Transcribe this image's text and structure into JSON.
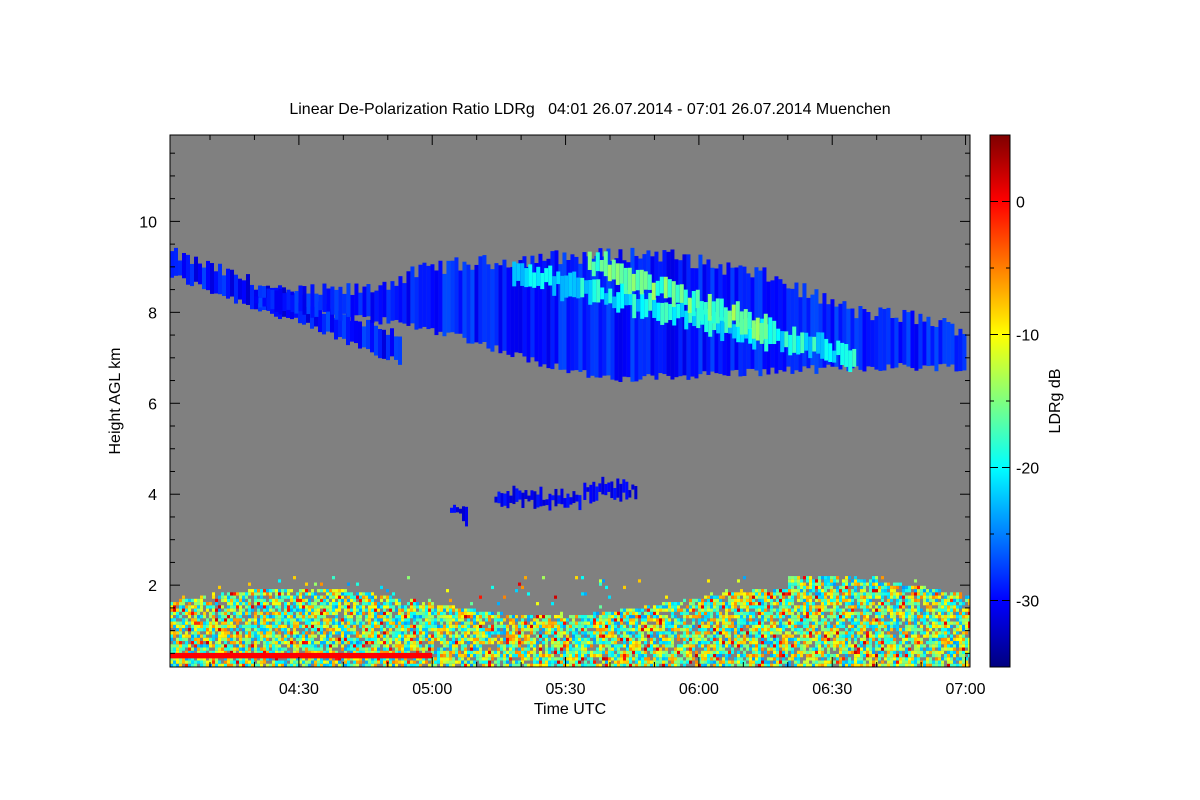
{
  "chart_data": {
    "type": "heatmap",
    "title": "Linear De-Polarization Ratio LDRg   04:01 26.07.2014 - 07:01 26.07.2014 Muenchen",
    "xlabel": "Time UTC",
    "ylabel": "Height AGL km",
    "colorbar_label": "LDRg dB",
    "x_ticks": [
      "04:30",
      "05:00",
      "05:30",
      "06:00",
      "06:30",
      "07:00"
    ],
    "x_tick_minutes": [
      270,
      300,
      330,
      360,
      390,
      420
    ],
    "xlim_minutes": [
      241,
      421
    ],
    "y_ticks": [
      "2",
      "4",
      "6",
      "8",
      "10"
    ],
    "y_tick_values": [
      2,
      4,
      6,
      8,
      10
    ],
    "ylim": [
      0.2,
      11.9
    ],
    "colorbar_ticks": [
      "0",
      "-10",
      "-20",
      "-30"
    ],
    "colorbar_tick_values": [
      0,
      -10,
      -20,
      -30
    ],
    "colorbar_range": [
      -35,
      5
    ],
    "background_color": "#808080",
    "colormap": [
      "#00007f",
      "#0000ff",
      "#007fff",
      "#00ffff",
      "#7fff7f",
      "#ffff00",
      "#ff7f00",
      "#ff0000",
      "#7f0000"
    ],
    "features": [
      {
        "kind": "cirrus-band",
        "x_start": 241,
        "x_end": 293,
        "top_start": 9.3,
        "top_end": 7.5,
        "bottom_start": 8.8,
        "bottom_end": 6.9,
        "value_range": [
          -32,
          -27
        ]
      },
      {
        "kind": "cirrus-layer",
        "x_start": 260,
        "x_end": 420,
        "top": [
          [
            260,
            8.4
          ],
          [
            285,
            8.5
          ],
          [
            300,
            9.0
          ],
          [
            325,
            9.2
          ],
          [
            350,
            9.3
          ],
          [
            375,
            8.8
          ],
          [
            395,
            8.0
          ],
          [
            408,
            7.9
          ],
          [
            420,
            7.6
          ]
        ],
        "bottom": [
          [
            260,
            8.1
          ],
          [
            290,
            7.8
          ],
          [
            305,
            7.5
          ],
          [
            320,
            7.0
          ],
          [
            340,
            6.5
          ],
          [
            355,
            6.6
          ],
          [
            375,
            6.7
          ],
          [
            400,
            6.8
          ],
          [
            420,
            6.8
          ]
        ],
        "bright_streaks": [
          {
            "x_start": 318,
            "x_end": 395,
            "height_start": 8.9,
            "height_end": 7.0,
            "value": -20
          },
          {
            "x_start": 335,
            "x_end": 375,
            "height_start": 9.1,
            "height_end": 7.6,
            "value": -16
          }
        ]
      },
      {
        "kind": "midlevel-patches",
        "patches": [
          {
            "x_start": 314,
            "x_end": 333,
            "height": 3.9
          },
          {
            "x_start": 334,
            "x_end": 346,
            "height": 4.1
          },
          {
            "x_start": 304,
            "x_end": 308,
            "height": 3.6
          }
        ],
        "value": -32
      },
      {
        "kind": "boundary-layer-noise",
        "height_range": [
          0.2,
          2.2
        ],
        "value_range": [
          -24,
          -5
        ],
        "red_line_height": 0.45
      }
    ]
  }
}
